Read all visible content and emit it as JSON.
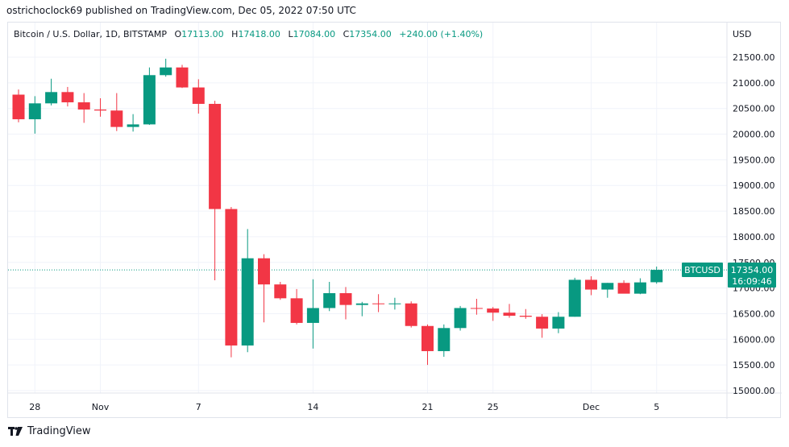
{
  "header": {
    "publisher_line": "ostrichoclock69 published on TradingView.com, Dec 05, 2022 07:50 UTC"
  },
  "legend": {
    "symbol": "Bitcoin / U.S. Dollar, 1D, BITSTAMP",
    "o_label": "O",
    "o_value": "17113.00",
    "h_label": "H",
    "h_value": "17418.00",
    "l_label": "L",
    "l_value": "17084.00",
    "c_label": "C",
    "c_value": "17354.00",
    "change": "+240.00 (+1.40%)"
  },
  "price_tag": {
    "symbol": "BTCUSD",
    "price": "17354.00",
    "countdown": "16:09:46"
  },
  "footer": {
    "brand": "TradingView"
  },
  "colors": {
    "up": "#089981",
    "down": "#f23645",
    "grid": "#f0f3fa",
    "axis_text": "#131722",
    "legend_green": "#089981"
  },
  "chart_data": {
    "type": "candlestick",
    "title": "Bitcoin / U.S. Dollar, 1D, BITSTAMP",
    "currency_label": "USD",
    "ylim": [
      14900,
      21950
    ],
    "y_ticks": [
      15000,
      15500,
      16000,
      16500,
      17000,
      17500,
      18000,
      18500,
      19000,
      19500,
      20000,
      20500,
      21000,
      21500
    ],
    "y_tick_labels": [
      "15000.00",
      "15500.00",
      "16000.00",
      "16500.00",
      "17000.00",
      "17500.00",
      "18000.00",
      "18500.00",
      "19000.00",
      "19500.00",
      "20000.00",
      "20500.00",
      "21000.00",
      "21500.00"
    ],
    "x_ticks": [
      {
        "index": 1,
        "label": "28"
      },
      {
        "index": 5,
        "label": "Nov"
      },
      {
        "index": 11,
        "label": "7"
      },
      {
        "index": 18,
        "label": "14"
      },
      {
        "index": 25,
        "label": "21"
      },
      {
        "index": 29,
        "label": "25"
      },
      {
        "index": 35,
        "label": "Dec"
      },
      {
        "index": 39,
        "label": "5"
      }
    ],
    "current_price": 17354,
    "candles": [
      {
        "date": "Oct 27",
        "o": 20770,
        "h": 20870,
        "l": 20230,
        "c": 20290
      },
      {
        "date": "Oct 28",
        "o": 20290,
        "h": 20740,
        "l": 20010,
        "c": 20600
      },
      {
        "date": "Oct 29",
        "o": 20600,
        "h": 21080,
        "l": 20560,
        "c": 20820
      },
      {
        "date": "Oct 30",
        "o": 20820,
        "h": 20920,
        "l": 20540,
        "c": 20620
      },
      {
        "date": "Oct 31",
        "o": 20620,
        "h": 20800,
        "l": 20220,
        "c": 20480
      },
      {
        "date": "Nov 01",
        "o": 20480,
        "h": 20700,
        "l": 20340,
        "c": 20460
      },
      {
        "date": "Nov 02",
        "o": 20460,
        "h": 20800,
        "l": 20060,
        "c": 20140
      },
      {
        "date": "Nov 03",
        "o": 20140,
        "h": 20390,
        "l": 20050,
        "c": 20190
      },
      {
        "date": "Nov 04",
        "o": 20190,
        "h": 21300,
        "l": 20180,
        "c": 21150
      },
      {
        "date": "Nov 05",
        "o": 21150,
        "h": 21470,
        "l": 21120,
        "c": 21300
      },
      {
        "date": "Nov 06",
        "o": 21300,
        "h": 21350,
        "l": 20900,
        "c": 20910
      },
      {
        "date": "Nov 07",
        "o": 20910,
        "h": 21070,
        "l": 20400,
        "c": 20590
      },
      {
        "date": "Nov 08",
        "o": 20590,
        "h": 20650,
        "l": 17150,
        "c": 18540
      },
      {
        "date": "Nov 09",
        "o": 18540,
        "h": 18580,
        "l": 15650,
        "c": 15880
      },
      {
        "date": "Nov 10",
        "o": 15880,
        "h": 18150,
        "l": 15750,
        "c": 17580
      },
      {
        "date": "Nov 11",
        "o": 17580,
        "h": 17660,
        "l": 16330,
        "c": 17070
      },
      {
        "date": "Nov 12",
        "o": 17070,
        "h": 17120,
        "l": 16770,
        "c": 16800
      },
      {
        "date": "Nov 13",
        "o": 16800,
        "h": 16980,
        "l": 16290,
        "c": 16320
      },
      {
        "date": "Nov 14",
        "o": 16320,
        "h": 17170,
        "l": 15820,
        "c": 16610
      },
      {
        "date": "Nov 15",
        "o": 16610,
        "h": 17120,
        "l": 16550,
        "c": 16900
      },
      {
        "date": "Nov 16",
        "o": 16900,
        "h": 17020,
        "l": 16390,
        "c": 16670
      },
      {
        "date": "Nov 17",
        "o": 16670,
        "h": 16730,
        "l": 16450,
        "c": 16700
      },
      {
        "date": "Nov 18",
        "o": 16700,
        "h": 16880,
        "l": 16530,
        "c": 16690
      },
      {
        "date": "Nov 19",
        "o": 16690,
        "h": 16810,
        "l": 16580,
        "c": 16700
      },
      {
        "date": "Nov 20",
        "o": 16700,
        "h": 16740,
        "l": 16230,
        "c": 16260
      },
      {
        "date": "Nov 21",
        "o": 16260,
        "h": 16290,
        "l": 15500,
        "c": 15770
      },
      {
        "date": "Nov 22",
        "o": 15770,
        "h": 16290,
        "l": 15660,
        "c": 16220
      },
      {
        "date": "Nov 23",
        "o": 16220,
        "h": 16650,
        "l": 16170,
        "c": 16610
      },
      {
        "date": "Nov 24",
        "o": 16610,
        "h": 16790,
        "l": 16480,
        "c": 16600
      },
      {
        "date": "Nov 25",
        "o": 16600,
        "h": 16630,
        "l": 16360,
        "c": 16520
      },
      {
        "date": "Nov 26",
        "o": 16520,
        "h": 16690,
        "l": 16420,
        "c": 16460
      },
      {
        "date": "Nov 27",
        "o": 16460,
        "h": 16590,
        "l": 16400,
        "c": 16440
      },
      {
        "date": "Nov 28",
        "o": 16440,
        "h": 16490,
        "l": 16030,
        "c": 16210
      },
      {
        "date": "Nov 29",
        "o": 16210,
        "h": 16530,
        "l": 16120,
        "c": 16440
      },
      {
        "date": "Nov 30",
        "o": 16440,
        "h": 17200,
        "l": 16440,
        "c": 17160
      },
      {
        "date": "Dec 01",
        "o": 17160,
        "h": 17230,
        "l": 16860,
        "c": 16970
      },
      {
        "date": "Dec 02",
        "o": 16970,
        "h": 17100,
        "l": 16810,
        "c": 17100
      },
      {
        "date": "Dec 03",
        "o": 17100,
        "h": 17150,
        "l": 16900,
        "c": 16890
      },
      {
        "date": "Dec 04",
        "o": 16890,
        "h": 17190,
        "l": 16880,
        "c": 17110
      },
      {
        "date": "Dec 05",
        "o": 17113,
        "h": 17418,
        "l": 17084,
        "c": 17354
      }
    ]
  }
}
